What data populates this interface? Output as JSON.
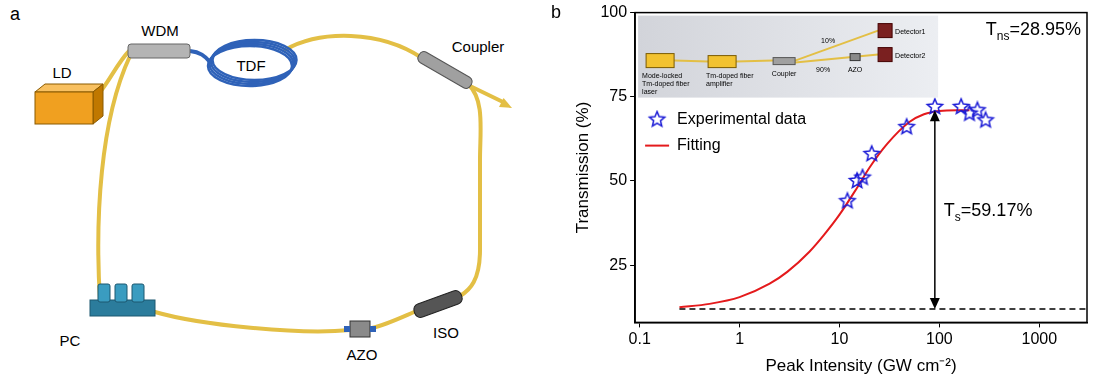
{
  "figure_a": {
    "label": "a",
    "nodes": [
      {
        "label": "LD"
      },
      {
        "label": "WDM"
      },
      {
        "label": "TDF"
      },
      {
        "label": "Coupler"
      },
      {
        "label": "PC"
      },
      {
        "label": "AZO"
      },
      {
        "label": "ISO"
      }
    ]
  },
  "chart_data": {
    "type": "scatter",
    "panel_label": "b",
    "x_label": "Peak Intensity (GW cm⁻²)",
    "y_label": "Transmission (%)",
    "log": "x",
    "grid": false,
    "legend": "upper left",
    "xlim": [
      0.09,
      3000
    ],
    "xticks": [
      0.1,
      1,
      10,
      100,
      1000
    ],
    "ylim": [
      8,
      100
    ],
    "yticks": [
      25,
      50,
      75,
      100
    ],
    "series": [
      {
        "name": "Experimental data",
        "type": "scatter",
        "marker": "star",
        "color": "#1a1ad6",
        "x": [
          12,
          15,
          17,
          21,
          47,
          90,
          165,
          200,
          240,
          290
        ],
        "values": [
          44,
          50,
          51,
          58,
          66,
          72,
          72,
          70,
          71,
          68
        ]
      },
      {
        "name": "Fitting",
        "type": "line",
        "color": "#e41a1c",
        "x": [
          0.25,
          0.5,
          1,
          2,
          3,
          5,
          7,
          10,
          15,
          20,
          30,
          50,
          70,
          100,
          150,
          200
        ],
        "values": [
          12.5,
          13.5,
          15.5,
          19.5,
          23,
          29,
          34,
          40,
          48,
          54,
          61,
          67.5,
          69.8,
          70.8,
          71,
          71
        ]
      }
    ],
    "reference_line": {
      "y": 12,
      "x": [
        0.25,
        3000
      ],
      "line_style": "dashed"
    },
    "arrow": {
      "x": 90,
      "y": [
        12,
        71
      ]
    },
    "annotations": [
      {
        "text": "T",
        "subscript": "ns",
        "suffix": "=28.95%"
      },
      {
        "text": "T",
        "subscript": "s",
        "suffix": "=59.17%"
      }
    ],
    "inset": {
      "nodes": [
        {
          "label": "Mode-locked Tm-doped fiber laser"
        },
        {
          "label": "Tm-doped fiber amplifier"
        },
        {
          "label": "Coupler"
        },
        {
          "label": "10%"
        },
        {
          "label": "90%"
        },
        {
          "label": "AZO"
        },
        {
          "label": "Detector1"
        },
        {
          "label": "Detector2"
        }
      ]
    }
  }
}
